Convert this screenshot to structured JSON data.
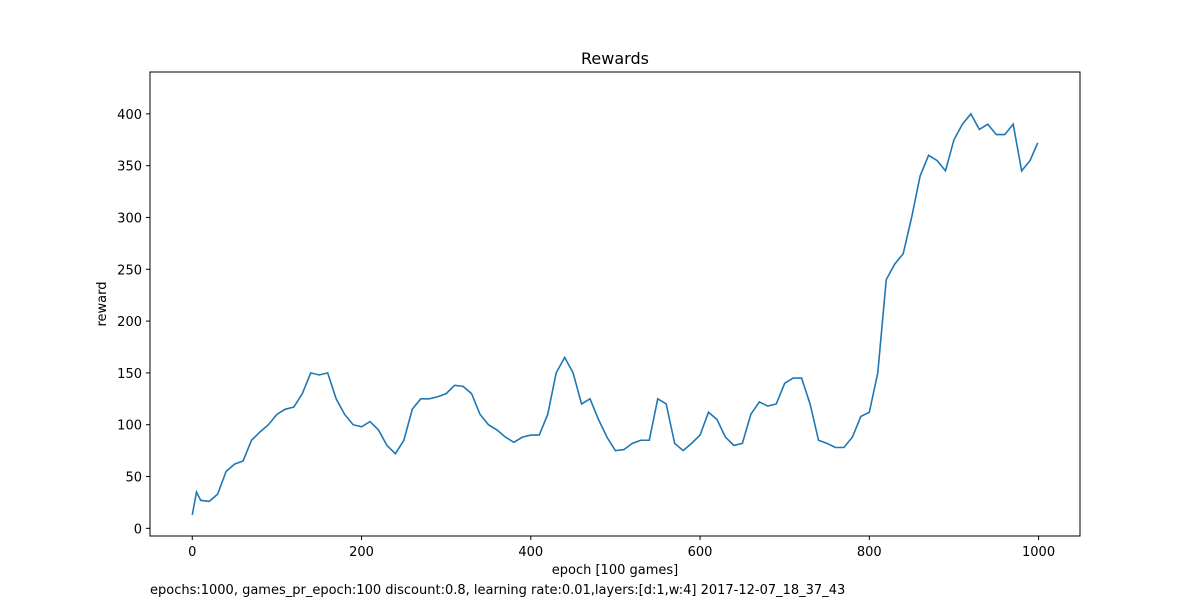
{
  "chart_data": {
    "type": "line",
    "title": "Rewards",
    "xlabel": "epoch [100 games]",
    "ylabel": "reward",
    "note": "epochs:1000, games_pr_epoch:100 discount:0.8, learning rate:0.01,layers:[d:1,w:4] 2017-12-07_18_37_43",
    "x": [
      0,
      5,
      10,
      20,
      30,
      40,
      50,
      60,
      70,
      80,
      90,
      100,
      110,
      120,
      130,
      140,
      150,
      160,
      170,
      180,
      190,
      200,
      210,
      220,
      230,
      240,
      250,
      260,
      270,
      280,
      290,
      300,
      310,
      320,
      330,
      340,
      350,
      360,
      370,
      380,
      390,
      400,
      410,
      420,
      430,
      440,
      450,
      460,
      470,
      480,
      490,
      500,
      510,
      520,
      530,
      540,
      550,
      560,
      570,
      580,
      590,
      600,
      610,
      620,
      630,
      640,
      650,
      660,
      670,
      680,
      690,
      700,
      710,
      720,
      730,
      740,
      750,
      760,
      770,
      780,
      790,
      800,
      810,
      820,
      830,
      840,
      850,
      860,
      870,
      880,
      890,
      900,
      910,
      920,
      930,
      940,
      950,
      960,
      970,
      980,
      990,
      999
    ],
    "series": [
      {
        "name": "reward",
        "color": "#1f77b4",
        "values": [
          13,
          35,
          27,
          26,
          33,
          55,
          62,
          65,
          85,
          93,
          100,
          110,
          115,
          117,
          130,
          150,
          148,
          150,
          125,
          110,
          100,
          98,
          103,
          95,
          80,
          72,
          85,
          115,
          125,
          125,
          127,
          130,
          138,
          137,
          130,
          110,
          100,
          95,
          88,
          83,
          88,
          90,
          90,
          110,
          150,
          165,
          150,
          120,
          125,
          105,
          88,
          75,
          76,
          82,
          85,
          85,
          125,
          120,
          82,
          75,
          82,
          90,
          112,
          105,
          88,
          80,
          82,
          110,
          122,
          118,
          120,
          140,
          145,
          145,
          120,
          85,
          82,
          78,
          78,
          88,
          108,
          112,
          150,
          240,
          255,
          265,
          300,
          340,
          360,
          355,
          345,
          375,
          390,
          400,
          385,
          390,
          380,
          380,
          390,
          345,
          355,
          372
        ]
      }
    ],
    "xlim": [
      -49.95,
      1048.95
    ],
    "ylim": [
      -7.4,
      440.4
    ],
    "xticks": [
      0,
      200,
      400,
      600,
      800,
      1000
    ],
    "yticks": [
      0,
      50,
      100,
      150,
      200,
      250,
      300,
      350,
      400
    ],
    "grid": false
  }
}
